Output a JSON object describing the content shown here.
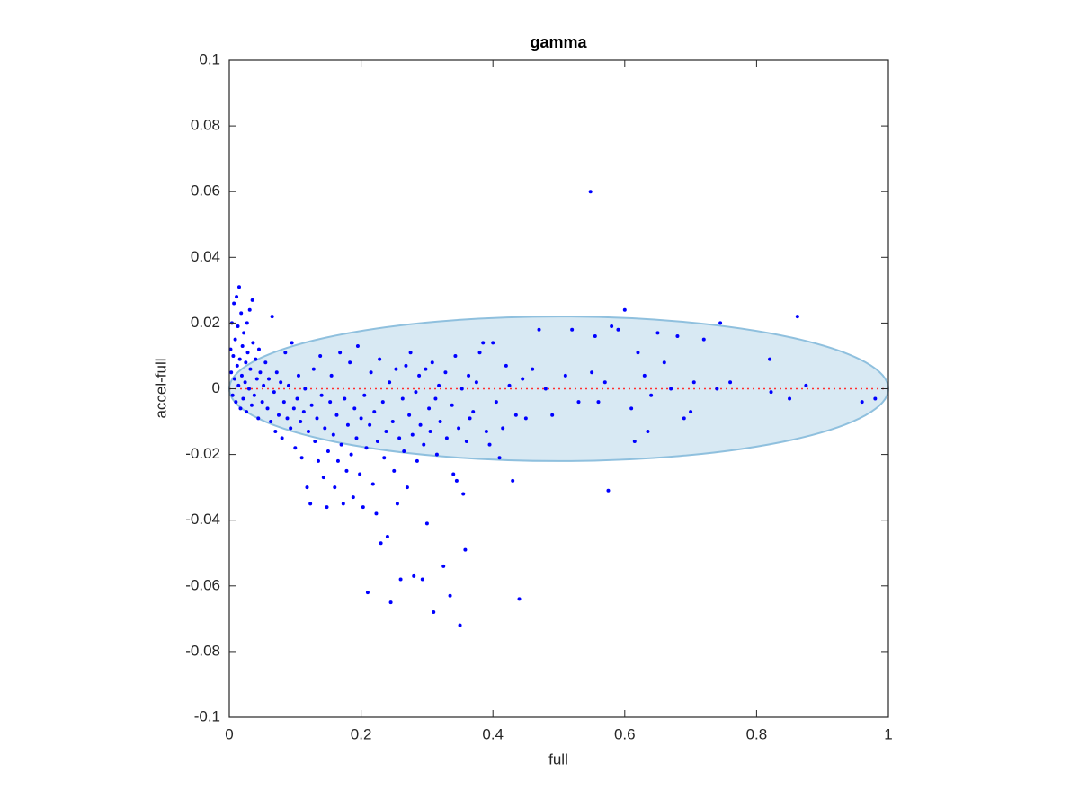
{
  "chart_data": {
    "type": "scatter",
    "title": "gamma",
    "x_label": "full",
    "y_label": "accel-full",
    "xlim": [
      0,
      1
    ],
    "ylim": [
      -0.1,
      0.1
    ],
    "xticks": [
      0,
      0.2,
      0.4,
      0.6,
      0.8,
      1
    ],
    "yticks": [
      -0.1,
      -0.08,
      -0.06,
      -0.04,
      -0.02,
      0,
      0.02,
      0.04,
      0.06,
      0.08,
      0.1
    ],
    "ellipse": {
      "cx": 0.5,
      "cy": 0,
      "rx": 0.5,
      "ry": 0.022,
      "color": "#8fc0de"
    },
    "reference_line": {
      "y": 0,
      "color": "#ff3030"
    },
    "series": [
      {
        "color": "#0000ff",
        "x": [
          0.002,
          0.003,
          0.004,
          0.005,
          0.006,
          0.007,
          0.008,
          0.009,
          0.01,
          0.011,
          0.012,
          0.013,
          0.014,
          0.015,
          0.016,
          0.017,
          0.018,
          0.019,
          0.02,
          0.021,
          0.022,
          0.024,
          0.025,
          0.026,
          0.027,
          0.028,
          0.03,
          0.031,
          0.032,
          0.034,
          0.035,
          0.036,
          0.038,
          0.04,
          0.042,
          0.044,
          0.045,
          0.047,
          0.05,
          0.052,
          0.055,
          0.058,
          0.06,
          0.063,
          0.065,
          0.068,
          0.07,
          0.072,
          0.075,
          0.078,
          0.08,
          0.083,
          0.085,
          0.088,
          0.09,
          0.093,
          0.095,
          0.098,
          0.1,
          0.103,
          0.105,
          0.108,
          0.11,
          0.113,
          0.115,
          0.118,
          0.12,
          0.123,
          0.125,
          0.128,
          0.13,
          0.133,
          0.135,
          0.138,
          0.14,
          0.143,
          0.145,
          0.148,
          0.15,
          0.153,
          0.155,
          0.158,
          0.16,
          0.163,
          0.165,
          0.168,
          0.17,
          0.173,
          0.175,
          0.178,
          0.18,
          0.183,
          0.185,
          0.188,
          0.19,
          0.193,
          0.195,
          0.198,
          0.2,
          0.203,
          0.205,
          0.208,
          0.21,
          0.213,
          0.215,
          0.218,
          0.22,
          0.223,
          0.225,
          0.228,
          0.23,
          0.233,
          0.235,
          0.238,
          0.24,
          0.243,
          0.245,
          0.248,
          0.25,
          0.253,
          0.255,
          0.258,
          0.26,
          0.263,
          0.265,
          0.268,
          0.27,
          0.273,
          0.275,
          0.278,
          0.28,
          0.283,
          0.285,
          0.288,
          0.29,
          0.293,
          0.295,
          0.298,
          0.3,
          0.303,
          0.305,
          0.308,
          0.31,
          0.313,
          0.315,
          0.318,
          0.32,
          0.325,
          0.328,
          0.33,
          0.335,
          0.338,
          0.34,
          0.343,
          0.345,
          0.348,
          0.35,
          0.353,
          0.355,
          0.358,
          0.36,
          0.363,
          0.365,
          0.37,
          0.375,
          0.38,
          0.385,
          0.39,
          0.395,
          0.4,
          0.405,
          0.41,
          0.415,
          0.42,
          0.425,
          0.43,
          0.435,
          0.44,
          0.445,
          0.45,
          0.46,
          0.47,
          0.48,
          0.49,
          0.51,
          0.52,
          0.53,
          0.548,
          0.55,
          0.555,
          0.56,
          0.57,
          0.575,
          0.58,
          0.59,
          0.6,
          0.61,
          0.615,
          0.62,
          0.63,
          0.635,
          0.64,
          0.65,
          0.66,
          0.67,
          0.68,
          0.69,
          0.7,
          0.705,
          0.72,
          0.74,
          0.745,
          0.76,
          0.82,
          0.822,
          0.85,
          0.862,
          0.875,
          0.96,
          0.98
        ],
        "y": [
          0.012,
          0.005,
          0.02,
          -0.002,
          0.01,
          0.026,
          0.003,
          0.015,
          -0.004,
          0.028,
          0.007,
          0.019,
          0.001,
          0.031,
          0.009,
          -0.006,
          0.023,
          0.004,
          0.013,
          -0.003,
          0.017,
          0.002,
          0.008,
          -0.007,
          0.02,
          0.011,
          0.0,
          0.024,
          0.006,
          -0.005,
          0.027,
          0.014,
          -0.002,
          0.009,
          0.003,
          -0.009,
          0.012,
          0.005,
          -0.004,
          0.001,
          0.008,
          -0.006,
          0.003,
          -0.01,
          0.022,
          -0.001,
          -0.013,
          0.005,
          -0.008,
          0.002,
          -0.015,
          -0.004,
          0.011,
          -0.009,
          0.001,
          -0.012,
          0.014,
          -0.006,
          -0.018,
          -0.003,
          0.004,
          -0.01,
          -0.021,
          -0.007,
          0.0,
          -0.03,
          -0.013,
          -0.035,
          -0.005,
          0.006,
          -0.016,
          -0.009,
          -0.022,
          0.01,
          -0.002,
          -0.027,
          -0.012,
          -0.036,
          -0.019,
          -0.004,
          0.004,
          -0.014,
          -0.03,
          -0.008,
          -0.022,
          0.011,
          -0.017,
          -0.035,
          -0.003,
          -0.025,
          -0.011,
          0.008,
          -0.02,
          -0.033,
          -0.006,
          -0.015,
          0.013,
          -0.026,
          -0.009,
          -0.036,
          -0.002,
          -0.018,
          -0.062,
          -0.011,
          0.005,
          -0.029,
          -0.007,
          -0.038,
          -0.016,
          0.009,
          -0.047,
          -0.004,
          -0.021,
          -0.013,
          -0.045,
          0.002,
          -0.065,
          -0.01,
          -0.025,
          0.006,
          -0.035,
          -0.015,
          -0.058,
          -0.003,
          -0.019,
          0.007,
          -0.03,
          -0.008,
          0.011,
          -0.014,
          -0.057,
          -0.001,
          -0.022,
          0.004,
          -0.011,
          -0.058,
          -0.017,
          0.006,
          -0.041,
          -0.006,
          -0.013,
          0.008,
          -0.068,
          -0.003,
          -0.02,
          0.001,
          -0.01,
          -0.054,
          0.005,
          -0.015,
          -0.063,
          -0.005,
          -0.026,
          0.01,
          -0.028,
          -0.012,
          -0.072,
          0.0,
          -0.032,
          -0.049,
          -0.016,
          0.004,
          -0.009,
          -0.007,
          0.002,
          0.011,
          0.014,
          -0.013,
          -0.017,
          0.014,
          -0.004,
          -0.021,
          -0.012,
          0.007,
          0.001,
          -0.028,
          -0.008,
          -0.064,
          0.003,
          -0.009,
          0.006,
          0.018,
          0.0,
          -0.008,
          0.004,
          0.018,
          -0.004,
          0.06,
          0.005,
          0.016,
          -0.004,
          0.002,
          -0.031,
          0.019,
          0.018,
          0.024,
          -0.006,
          -0.016,
          0.011,
          0.004,
          -0.013,
          -0.002,
          0.017,
          0.008,
          0.0,
          0.016,
          -0.009,
          -0.007,
          0.002,
          0.015,
          0.0,
          0.02,
          0.002,
          0.009,
          -0.001,
          -0.003,
          0.022,
          0.001,
          -0.004,
          -0.003
        ]
      }
    ]
  }
}
